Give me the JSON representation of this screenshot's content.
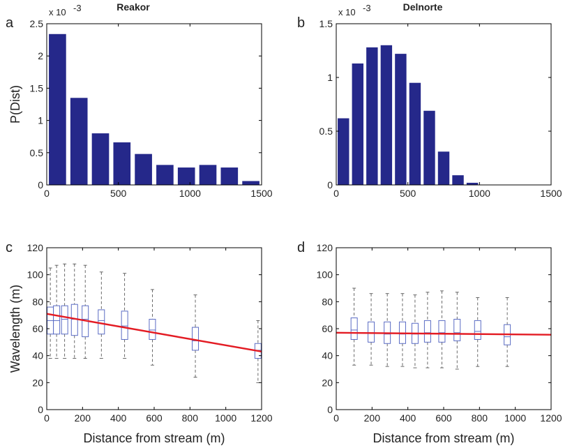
{
  "colors": {
    "bar": "#25288a",
    "box": "#5a6bc4",
    "regression": "#e31b23",
    "axis": "#000000"
  },
  "chart_data": [
    {
      "panel": "a",
      "type": "bar",
      "title": "Reakor",
      "ylabel": "P(Dist)",
      "xlabel": "",
      "y_scale_note": "x 10",
      "y_scale_exp": "-3",
      "xlim": [
        0,
        1500
      ],
      "ylim": [
        0,
        2.5
      ],
      "xticks": [
        0,
        500,
        1000,
        1500
      ],
      "yticks": [
        0,
        0.5,
        1,
        1.5,
        2,
        2.5
      ],
      "bin_width": 150,
      "x": [
        75,
        225,
        375,
        525,
        675,
        825,
        975,
        1125,
        1275,
        1425
      ],
      "values": [
        2.34,
        1.35,
        0.8,
        0.66,
        0.48,
        0.31,
        0.27,
        0.31,
        0.27,
        0.06
      ]
    },
    {
      "panel": "b",
      "type": "bar",
      "title": "Delnorte",
      "ylabel": "",
      "xlabel": "",
      "y_scale_note": "x 10",
      "y_scale_exp": "-3",
      "xlim": [
        0,
        1500
      ],
      "ylim": [
        0,
        1.5
      ],
      "xticks": [
        0,
        500,
        1000,
        1500
      ],
      "yticks": [
        0,
        0.5,
        1,
        1.5
      ],
      "bin_width": 100,
      "x": [
        50,
        150,
        250,
        350,
        450,
        550,
        650,
        750,
        850,
        950,
        1050
      ],
      "values": [
        0.62,
        1.13,
        1.28,
        1.3,
        1.22,
        0.95,
        0.69,
        0.31,
        0.09,
        0.02,
        0.0
      ]
    },
    {
      "panel": "c",
      "type": "box",
      "title": "",
      "ylabel": "Wavelength (m)",
      "xlabel": "Distance from stream (m)",
      "xlim": [
        0,
        1200
      ],
      "ylim": [
        0,
        120
      ],
      "xticks": [
        0,
        200,
        400,
        600,
        800,
        1000,
        1200
      ],
      "yticks": [
        0,
        20,
        40,
        60,
        80,
        100,
        120
      ],
      "boxes": [
        {
          "x": 20,
          "min": 38,
          "q1": 56,
          "median": 66,
          "q3": 76,
          "max": 105
        },
        {
          "x": 55,
          "min": 38,
          "q1": 56,
          "median": 66,
          "q3": 77,
          "max": 107
        },
        {
          "x": 100,
          "min": 38,
          "q1": 56,
          "median": 67,
          "q3": 77,
          "max": 108
        },
        {
          "x": 155,
          "min": 38,
          "q1": 55,
          "median": 67,
          "q3": 78,
          "max": 108
        },
        {
          "x": 215,
          "min": 38,
          "q1": 54,
          "median": 67,
          "q3": 77,
          "max": 107
        },
        {
          "x": 305,
          "min": 38,
          "q1": 56,
          "median": 66,
          "q3": 74,
          "max": 102
        },
        {
          "x": 435,
          "min": 38,
          "q1": 52,
          "median": 62,
          "q3": 73,
          "max": 101
        },
        {
          "x": 590,
          "min": 33,
          "q1": 52,
          "median": 59,
          "q3": 67,
          "max": 89
        },
        {
          "x": 830,
          "min": 24,
          "q1": 44,
          "median": 51,
          "q3": 61,
          "max": 85
        },
        {
          "x": 1180,
          "min": 20,
          "q1": 38,
          "median": 44,
          "q3": 49,
          "max": 66
        }
      ],
      "regression": {
        "x": [
          0,
          1200
        ],
        "y": [
          71,
          43
        ]
      }
    },
    {
      "panel": "d",
      "type": "box",
      "title": "",
      "ylabel": "",
      "xlabel": "Distance from stream (m)",
      "xlim": [
        0,
        1200
      ],
      "ylim": [
        0,
        120
      ],
      "xticks": [
        0,
        200,
        400,
        600,
        800,
        1000,
        1200
      ],
      "yticks": [
        0,
        20,
        40,
        60,
        80,
        100,
        120
      ],
      "boxes": [
        {
          "x": 100,
          "min": 33,
          "q1": 52,
          "median": 59,
          "q3": 68,
          "max": 90
        },
        {
          "x": 195,
          "min": 33,
          "q1": 50,
          "median": 57,
          "q3": 65,
          "max": 86
        },
        {
          "x": 285,
          "min": 32,
          "q1": 49,
          "median": 56,
          "q3": 65,
          "max": 86
        },
        {
          "x": 370,
          "min": 32,
          "q1": 49,
          "median": 56,
          "q3": 65,
          "max": 86
        },
        {
          "x": 440,
          "min": 31,
          "q1": 49,
          "median": 56,
          "q3": 64,
          "max": 85
        },
        {
          "x": 510,
          "min": 31,
          "q1": 50,
          "median": 57,
          "q3": 66,
          "max": 87
        },
        {
          "x": 590,
          "min": 31,
          "q1": 50,
          "median": 57,
          "q3": 66,
          "max": 88
        },
        {
          "x": 675,
          "min": 30,
          "q1": 51,
          "median": 57,
          "q3": 67,
          "max": 87
        },
        {
          "x": 790,
          "min": 32,
          "q1": 52,
          "median": 58,
          "q3": 66,
          "max": 83
        },
        {
          "x": 955,
          "min": 32,
          "q1": 48,
          "median": 54,
          "q3": 63,
          "max": 83
        }
      ],
      "regression": {
        "x": [
          0,
          1200
        ],
        "y": [
          57,
          55.5
        ]
      }
    }
  ]
}
